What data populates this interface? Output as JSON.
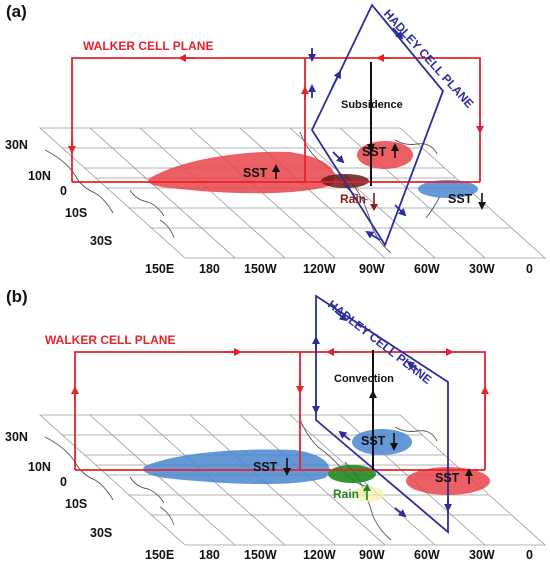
{
  "panels": [
    {
      "tag": "(a)",
      "walker_label": "WALKER CELL PLANE",
      "hadley_label": "HADLEY CELL PLANE",
      "vertical_label": "Subsidence",
      "sst": [
        {
          "text": "SST",
          "arrow": "up"
        },
        {
          "text": "SST",
          "arrow": "up"
        },
        {
          "text": "SST",
          "arrow": "down"
        }
      ],
      "rain": {
        "text": "Rain",
        "arrow": "down"
      },
      "lat_labels": [
        "30N",
        "10N",
        "0",
        "10S",
        "30S"
      ],
      "lon_labels": [
        "150E",
        "180",
        "150W",
        "120W",
        "90W",
        "60W",
        "30W",
        "0"
      ]
    },
    {
      "tag": "(b)",
      "walker_label": "WALKER CELL PLANE",
      "hadley_label": "HADLEY CELL PLANE",
      "vertical_label": "Convection",
      "sst": [
        {
          "text": "SST",
          "arrow": "down"
        },
        {
          "text": "SST",
          "arrow": "down"
        },
        {
          "text": "SST",
          "arrow": "up"
        }
      ],
      "rain": {
        "text": "Rain",
        "arrow": "up"
      },
      "lat_labels": [
        "30N",
        "10N",
        "0",
        "10S",
        "30S"
      ],
      "lon_labels": [
        "150E",
        "180",
        "150W",
        "120W",
        "90W",
        "60W",
        "30W",
        "0"
      ]
    }
  ],
  "colors": {
    "walker": "#e8222a",
    "hadley": "#2b2d9a",
    "warm_sst": "#e8434a",
    "cool_sst": "#4a86cf",
    "rain_a": "#6b1a1a",
    "rain_b": "#1d8a1d"
  }
}
